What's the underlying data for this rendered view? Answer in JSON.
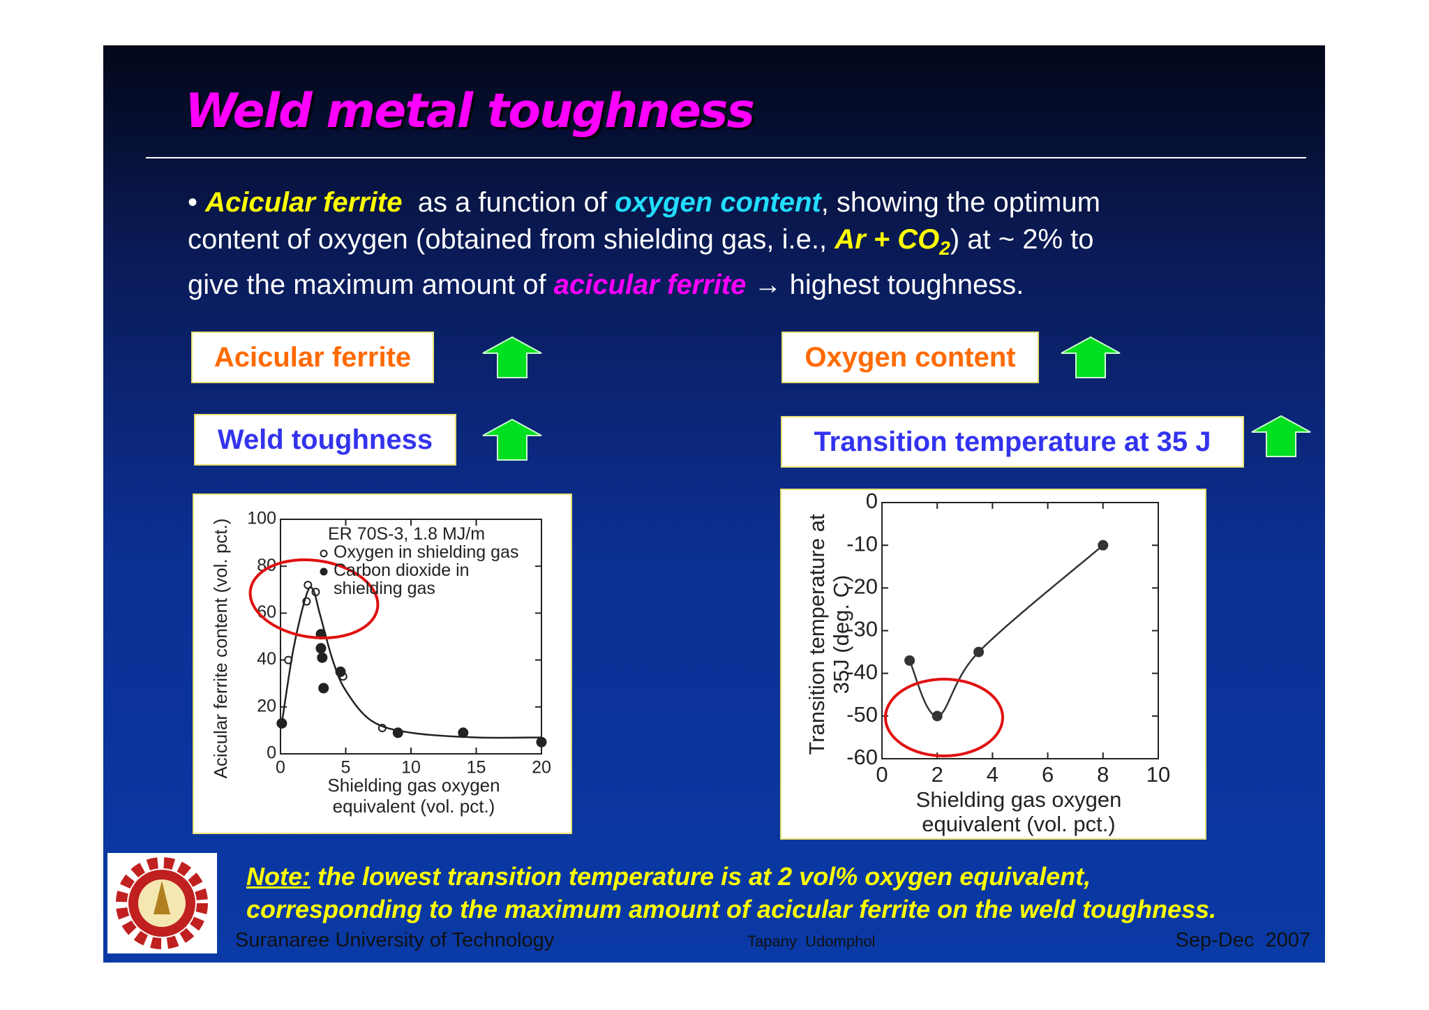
{
  "title": "Weld metal toughness",
  "bullet": [
    [
      "Acicular ferrite",
      "  as a function of ",
      "oxygen content",
      ", showing the optimum"
    ],
    [
      "content of oxygen (obtained from shielding gas, i.e., ",
      "Ar + CO",
      "2",
      ") at ~ 2% to"
    ],
    [
      "give the maximum amount of ",
      "acicular ferrite",
      " → highest toughness."
    ]
  ],
  "boxes": [
    "Acicular ferrite",
    "Oxygen content",
    "Weld toughness",
    "Transition temperature at 35 J"
  ],
  "chart_data": [
    {
      "type": "scatter",
      "annotation": "ER 70S-3, 1.8 MJ/m",
      "xlabel": "Shielding gas oxygen equivalent (vol. pct.)",
      "ylabel": "Acicular ferrite content (vol. pct.)",
      "xlim": [
        0,
        20
      ],
      "ylim": [
        0,
        100
      ],
      "xticks": [
        0,
        5,
        10,
        15,
        20
      ],
      "yticks": [
        0,
        20,
        40,
        60,
        80,
        100
      ],
      "series": [
        {
          "name": "Oxygen in shielding gas",
          "marker": "open",
          "color": "#222222",
          "x": [
            0.6,
            2.0,
            2.1,
            2.7,
            4.8,
            7.8,
            14
          ],
          "values": [
            40,
            65,
            72,
            69,
            33,
            11,
            9
          ]
        },
        {
          "name": "Carbon dioxide in shielding gas",
          "marker": "filled",
          "color": "#222222",
          "x": [
            0.1,
            3.1,
            3.1,
            3.2,
            3.3,
            4.6,
            9,
            14,
            20
          ],
          "values": [
            13,
            51,
            45,
            41,
            28,
            35,
            9,
            9,
            5
          ]
        },
        {
          "marker": "curve",
          "color": "#222222",
          "x": [
            0.1,
            1,
            2,
            2.5,
            3,
            4,
            5,
            7,
            10,
            15,
            20
          ],
          "values": [
            13,
            45,
            68,
            70,
            60,
            40,
            27,
            14,
            9,
            7,
            7
          ]
        }
      ]
    },
    {
      "type": "line",
      "xlabel": "Shielding gas oxygen equivalent (vol. pct.)",
      "ylabel": "Transition temperature at 35J (deg. C)",
      "xlim": [
        0,
        10
      ],
      "ylim": [
        -60,
        0
      ],
      "xticks": [
        0,
        2,
        4,
        6,
        8,
        10
      ],
      "yticks": [
        0,
        -10,
        -20,
        -30,
        -40,
        -50,
        -60
      ],
      "series": [
        {
          "marker": "filled",
          "color": "#333333",
          "x": [
            1,
            2,
            3.5,
            8
          ],
          "values": [
            -37,
            -50,
            -35,
            -10
          ]
        }
      ]
    }
  ],
  "note": {
    "lead": "Note:",
    "lines": [
      " the lowest transition temperature is at 2 vol% oxygen equivalent,",
      "corresponding to the maximum amount of acicular ferrite on the weld toughness."
    ]
  },
  "footer": {
    "left": "Suranaree University of Technology",
    "center": "Tapany  Udomphol",
    "right": "Sep-Dec  2007"
  }
}
